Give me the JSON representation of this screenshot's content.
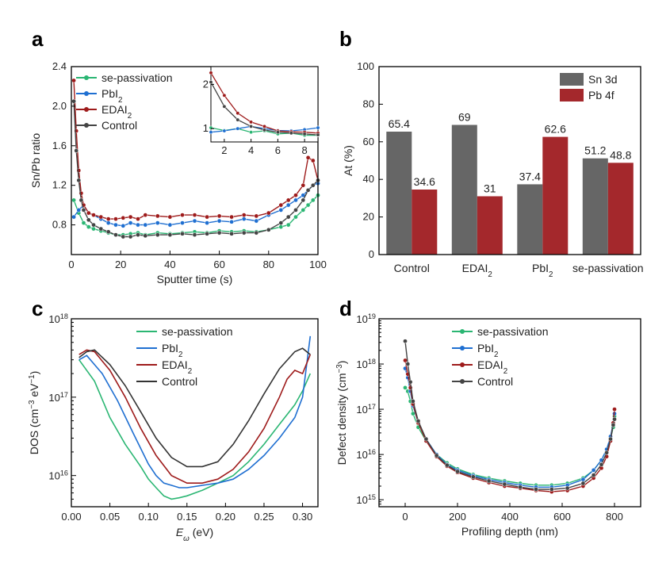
{
  "chart_data": [
    {
      "panel": "a",
      "type": "line",
      "xlabel": "Sputter time (s)",
      "ylabel": "Sn/Pb ratio",
      "xlim": [
        0,
        100
      ],
      "ylim": [
        0.5,
        2.4
      ],
      "xticks": [
        0,
        20,
        40,
        60,
        80,
        100
      ],
      "yticks": [
        0.8,
        1.2,
        1.6,
        2.0,
        2.4
      ],
      "yticklabels": [
        "0.8",
        "1.2",
        "1.6",
        "2.0",
        "2.4"
      ],
      "legend": "top-left",
      "series": [
        {
          "name": "se-passivation",
          "color": "#2bb673",
          "x": [
            1,
            3,
            5,
            7,
            9,
            12,
            15,
            18,
            21,
            24,
            27,
            30,
            35,
            40,
            45,
            50,
            55,
            60,
            65,
            70,
            75,
            80,
            85,
            88,
            91,
            94,
            96,
            98,
            100
          ],
          "y": [
            1.05,
            0.92,
            0.82,
            0.78,
            0.76,
            0.74,
            0.72,
            0.7,
            0.7,
            0.71,
            0.72,
            0.7,
            0.72,
            0.71,
            0.72,
            0.73,
            0.72,
            0.74,
            0.73,
            0.74,
            0.73,
            0.75,
            0.78,
            0.8,
            0.88,
            0.95,
            1.0,
            1.05,
            1.1
          ]
        },
        {
          "name": "PbI$_2$",
          "color": "#1f6fd1",
          "x": [
            1,
            3,
            5,
            7,
            9,
            12,
            15,
            18,
            21,
            24,
            27,
            30,
            35,
            40,
            45,
            50,
            55,
            60,
            65,
            70,
            75,
            80,
            85,
            88,
            91,
            94,
            96,
            98,
            100
          ],
          "y": [
            0.88,
            0.95,
            1.0,
            0.92,
            0.9,
            0.86,
            0.82,
            0.8,
            0.79,
            0.82,
            0.8,
            0.8,
            0.82,
            0.8,
            0.82,
            0.84,
            0.82,
            0.84,
            0.83,
            0.86,
            0.84,
            0.9,
            0.95,
            1.0,
            1.05,
            1.1,
            1.15,
            1.2,
            1.22
          ]
        },
        {
          "name": "EDAI$_2$",
          "color": "#9e1b1b",
          "x": [
            1,
            2,
            3,
            4,
            5,
            7,
            9,
            12,
            15,
            18,
            21,
            24,
            27,
            30,
            35,
            40,
            45,
            50,
            55,
            60,
            65,
            70,
            75,
            80,
            85,
            88,
            91,
            94,
            96,
            98,
            100
          ],
          "y": [
            2.26,
            1.75,
            1.35,
            1.12,
            1.0,
            0.92,
            0.9,
            0.88,
            0.86,
            0.86,
            0.87,
            0.88,
            0.86,
            0.9,
            0.89,
            0.88,
            0.9,
            0.9,
            0.88,
            0.89,
            0.88,
            0.9,
            0.89,
            0.92,
            1.0,
            1.05,
            1.1,
            1.2,
            1.48,
            1.45,
            1.25
          ]
        },
        {
          "name": "Control",
          "color": "#444444",
          "x": [
            1,
            2,
            3,
            4,
            5,
            7,
            9,
            12,
            15,
            18,
            21,
            24,
            27,
            30,
            35,
            40,
            45,
            50,
            55,
            60,
            65,
            70,
            75,
            80,
            85,
            88,
            91,
            94,
            96,
            98,
            100
          ],
          "y": [
            2.05,
            1.55,
            1.25,
            1.05,
            0.95,
            0.85,
            0.8,
            0.76,
            0.73,
            0.7,
            0.68,
            0.68,
            0.7,
            0.69,
            0.7,
            0.7,
            0.71,
            0.7,
            0.71,
            0.72,
            0.71,
            0.72,
            0.72,
            0.75,
            0.82,
            0.88,
            0.95,
            1.05,
            1.15,
            1.2,
            1.25
          ]
        }
      ],
      "inset": {
        "xlim": [
          1,
          9
        ],
        "ylim": [
          0.7,
          2.4
        ],
        "xticks": [
          2,
          4,
          6,
          8
        ],
        "yticks": [
          1,
          2
        ],
        "series": [
          {
            "name": "se-passivation",
            "color": "#2bb673",
            "x": [
              1,
              2,
              3,
              4,
              5,
              6,
              7,
              8,
              9
            ],
            "y": [
              1.02,
              0.96,
              1.0,
              0.92,
              0.95,
              0.88,
              0.9,
              0.85,
              0.85
            ]
          },
          {
            "name": "PbI$_2$",
            "color": "#1f6fd1",
            "x": [
              1,
              2,
              3,
              4,
              5,
              6,
              7,
              8,
              9
            ],
            "y": [
              0.92,
              0.95,
              1.0,
              1.05,
              1.0,
              0.96,
              0.95,
              0.98,
              1.02
            ]
          },
          {
            "name": "EDAI$_2$",
            "color": "#9e1b1b",
            "x": [
              1,
              2,
              3,
              4,
              5,
              6,
              7,
              8,
              9
            ],
            "y": [
              2.26,
              1.75,
              1.35,
              1.15,
              1.05,
              0.95,
              0.93,
              0.92,
              0.9
            ]
          },
          {
            "name": "Control",
            "color": "#444444",
            "x": [
              1,
              2,
              3,
              4,
              5,
              6,
              7,
              8,
              9
            ],
            "y": [
              2.05,
              1.5,
              1.2,
              1.05,
              0.97,
              0.92,
              0.9,
              0.88,
              0.86
            ]
          }
        ]
      }
    },
    {
      "panel": "b",
      "type": "bar",
      "ylabel": "At (%)",
      "ylim": [
        0,
        100
      ],
      "yticks": [
        0,
        20,
        40,
        60,
        80,
        100
      ],
      "categories": [
        "Control",
        "EDAI$_2$",
        "PbI$_2$",
        "se-passivation"
      ],
      "legend": "top-right",
      "series": [
        {
          "name": "Sn 3d",
          "color": "#666666",
          "values": [
            65.4,
            69,
            37.4,
            51.2
          ],
          "labels": [
            "65.4",
            "69",
            "37.4",
            "51.2"
          ]
        },
        {
          "name": "Pb 4f",
          "color": "#a4282c",
          "values": [
            34.6,
            31,
            62.6,
            48.8
          ],
          "labels": [
            "34.6",
            "31",
            "62.6",
            "48.8"
          ]
        }
      ]
    },
    {
      "panel": "c",
      "type": "line",
      "xlabel_sym": "E",
      "xlabel_sub": "ω",
      "xlabel_unit": "(eV)",
      "ylabel_parts": [
        "DOS (cm",
        "−3",
        " eV",
        "−1",
        ")"
      ],
      "xlim": [
        0,
        0.32
      ],
      "ylog": true,
      "ylim": [
        4000000000000000.0,
        1e+18
      ],
      "xticks": [
        0,
        0.05,
        0.1,
        0.15,
        0.2,
        0.25,
        0.3
      ],
      "xticklabels": [
        "0.00",
        "0.05",
        "0.10",
        "0.15",
        "0.20",
        "0.25",
        "0.30"
      ],
      "ytick_exps": [
        16,
        17,
        18
      ],
      "legend": "top-center",
      "series": [
        {
          "name": "se-passivation",
          "color": "#2bb673",
          "x": [
            0.01,
            0.03,
            0.05,
            0.07,
            0.09,
            0.1,
            0.11,
            0.12,
            0.13,
            0.14,
            0.15,
            0.17,
            0.19,
            0.21,
            0.23,
            0.25,
            0.27,
            0.29,
            0.3,
            0.31
          ],
          "y": [
            3e+17,
            1.6e+17,
            5.5e+16,
            2.5e+16,
            1.3e+16,
            9000000000000000.0,
            7000000000000000.0,
            5500000000000000.0,
            5000000000000000.0,
            5200000000000000.0,
            5500000000000000.0,
            6500000000000000.0,
            8000000000000000.0,
            1e+16,
            1.5e+16,
            2.5e+16,
            4.5e+16,
            8e+16,
            1.2e+17,
            2e+17
          ]
        },
        {
          "name": "PbI$_2$",
          "color": "#1f6fd1",
          "x": [
            0.01,
            0.02,
            0.04,
            0.06,
            0.08,
            0.1,
            0.11,
            0.12,
            0.13,
            0.14,
            0.15,
            0.17,
            0.19,
            0.21,
            0.23,
            0.25,
            0.27,
            0.29,
            0.3,
            0.31
          ],
          "y": [
            3e+17,
            3.4e+17,
            2e+17,
            9e+16,
            3.5e+16,
            1.4e+16,
            1e+16,
            8000000000000000.0,
            7500000000000000.0,
            7000000000000000.0,
            7000000000000000.0,
            7500000000000000.0,
            8000000000000000.0,
            9000000000000000.0,
            1.2e+16,
            1.8e+16,
            3e+16,
            5.5e+16,
            1e+17,
            6e+17
          ]
        },
        {
          "name": "EDAI$_2$",
          "color": "#9e1b1b",
          "x": [
            0.01,
            0.02,
            0.03,
            0.05,
            0.07,
            0.09,
            0.11,
            0.13,
            0.15,
            0.17,
            0.19,
            0.21,
            0.23,
            0.25,
            0.27,
            0.28,
            0.29,
            0.3,
            0.31
          ],
          "y": [
            3.5e+17,
            4e+17,
            3.8e+17,
            2.2e+17,
            1e+17,
            4e+16,
            1.8e+16,
            1e+16,
            8000000000000000.0,
            8000000000000000.0,
            9000000000000000.0,
            1.2e+16,
            2e+16,
            4e+16,
            1e+17,
            1.7e+17,
            2.2e+17,
            2e+17,
            3.5e+17
          ]
        },
        {
          "name": "Control",
          "color": "#333333",
          "x": [
            0.01,
            0.02,
            0.03,
            0.05,
            0.07,
            0.09,
            0.11,
            0.13,
            0.15,
            0.17,
            0.19,
            0.21,
            0.23,
            0.25,
            0.27,
            0.29,
            0.3,
            0.31
          ],
          "y": [
            3.2e+17,
            3.8e+17,
            4e+17,
            2.6e+17,
            1.4e+17,
            6.5e+16,
            3e+16,
            1.7e+16,
            1.3e+16,
            1.3e+16,
            1.5e+16,
            2.5e+16,
            5e+16,
            1.1e+17,
            2.3e+17,
            3.8e+17,
            4.2e+17,
            3.5e+17
          ]
        }
      ]
    },
    {
      "panel": "d",
      "type": "line",
      "xlabel": "Profiling depth (nm)",
      "ylabel_parts": [
        "Defect density (cm",
        "−3",
        ")"
      ],
      "xlim": [
        -100,
        900
      ],
      "ylog": true,
      "ylim": [
        700000000000000.0,
        1e+19
      ],
      "xticks": [
        0,
        200,
        400,
        600,
        800
      ],
      "ytick_exps": [
        15,
        16,
        17,
        18,
        19
      ],
      "legend": "top-center",
      "series": [
        {
          "name": "se-passivation",
          "color": "#2bb673",
          "x": [
            0,
            10,
            20,
            30,
            50,
            80,
            120,
            160,
            200,
            260,
            320,
            380,
            440,
            500,
            560,
            620,
            680,
            720,
            750,
            770,
            785,
            795,
            800
          ],
          "y": [
            3e+17,
            2.5e+17,
            1.5e+17,
            8e+16,
            4e+16,
            2e+16,
            1e+16,
            6500000000000000.0,
            4800000000000000.0,
            3600000000000000.0,
            3000000000000000.0,
            2600000000000000.0,
            2300000000000000.0,
            2100000000000000.0,
            2100000000000000.0,
            2300000000000000.0,
            3000000000000000.0,
            4500000000000000.0,
            7500000000000000.0,
            1.3e+16,
            2.2e+16,
            4e+16,
            7e+16
          ]
        },
        {
          "name": "PbI$_2$",
          "color": "#1f6fd1",
          "x": [
            0,
            10,
            20,
            30,
            50,
            80,
            120,
            160,
            200,
            260,
            320,
            380,
            440,
            500,
            560,
            620,
            680,
            720,
            750,
            770,
            785,
            795,
            800
          ],
          "y": [
            8e+17,
            5e+17,
            2.5e+17,
            1.2e+17,
            5e+16,
            2.2e+16,
            1e+16,
            6000000000000000.0,
            4500000000000000.0,
            3400000000000000.0,
            2800000000000000.0,
            2400000000000000.0,
            2100000000000000.0,
            1900000000000000.0,
            1900000000000000.0,
            2100000000000000.0,
            2800000000000000.0,
            4500000000000000.0,
            7500000000000000.0,
            1.3e+16,
            2.5e+16,
            5e+16,
            8e+16
          ]
        },
        {
          "name": "EDAI$_2$",
          "color": "#9e1b1b",
          "x": [
            0,
            10,
            20,
            30,
            50,
            80,
            120,
            160,
            200,
            260,
            320,
            380,
            440,
            500,
            560,
            620,
            680,
            720,
            750,
            770,
            785,
            795,
            800
          ],
          "y": [
            1.2e+18,
            6e+17,
            3e+17,
            1.3e+17,
            5e+16,
            2e+16,
            9000000000000000.0,
            5500000000000000.0,
            4000000000000000.0,
            3000000000000000.0,
            2400000000000000.0,
            2000000000000000.0,
            1800000000000000.0,
            1600000000000000.0,
            1500000000000000.0,
            1600000000000000.0,
            2000000000000000.0,
            3000000000000000.0,
            5000000000000000.0,
            9000000000000000.0,
            2e+16,
            5e+16,
            1e+17
          ]
        },
        {
          "name": "Control",
          "color": "#444444",
          "x": [
            0,
            10,
            20,
            30,
            50,
            80,
            120,
            160,
            200,
            260,
            320,
            380,
            440,
            500,
            560,
            620,
            680,
            720,
            750,
            770,
            785,
            795,
            800
          ],
          "y": [
            3.2e+18,
            1e+18,
            4e+17,
            1.5e+17,
            5.5e+16,
            2.2e+16,
            9500000000000000.0,
            5800000000000000.0,
            4200000000000000.0,
            3200000000000000.0,
            2600000000000000.0,
            2200000000000000.0,
            1900000000000000.0,
            1700000000000000.0,
            1700000000000000.0,
            1800000000000000.0,
            2300000000000000.0,
            3500000000000000.0,
            6000000000000000.0,
            1.1e+16,
            2.2e+16,
            4.5e+16,
            6e+16
          ]
        }
      ]
    }
  ]
}
